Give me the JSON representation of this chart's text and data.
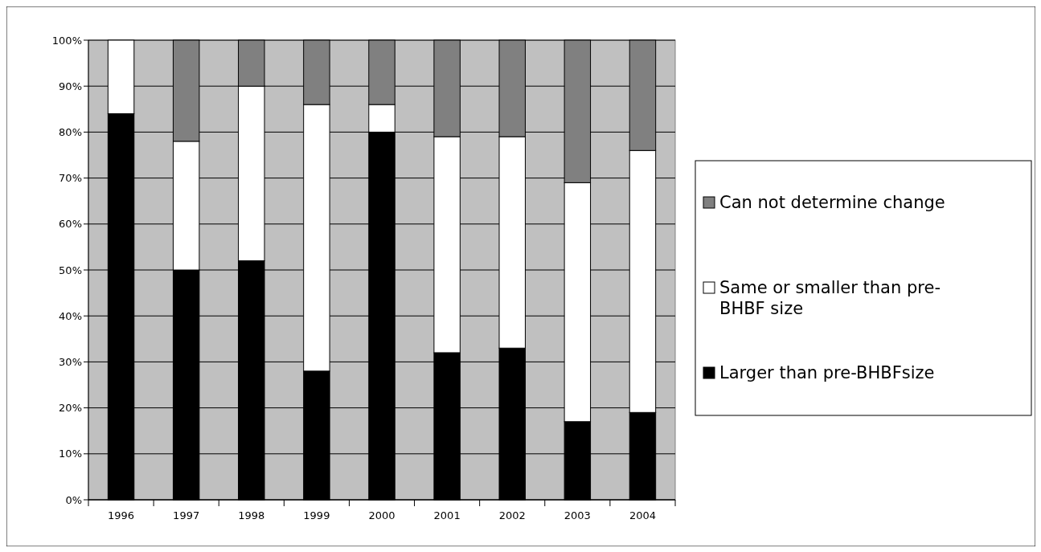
{
  "chart_data": {
    "type": "bar",
    "stacked": true,
    "categories": [
      "1996",
      "1997",
      "1998",
      "1999",
      "2000",
      "2001",
      "2002",
      "2003",
      "2004"
    ],
    "series": [
      {
        "name": "Larger than pre-BHBFsize",
        "color": "#000000",
        "values": [
          84,
          50,
          52,
          28,
          80,
          32,
          33,
          17,
          19
        ]
      },
      {
        "name": "Same or smaller than pre-BHBF size",
        "color": "#ffffff",
        "values": [
          16,
          28,
          38,
          58,
          6,
          47,
          46,
          52,
          57
        ]
      },
      {
        "name": "Can not determine change",
        "color": "#808080",
        "values": [
          0,
          22,
          10,
          14,
          14,
          21,
          21,
          31,
          24
        ]
      }
    ],
    "ylim": [
      0,
      100
    ],
    "yticks": [
      {
        "value": 0,
        "label": "0%"
      },
      {
        "value": 10,
        "label": "10%"
      },
      {
        "value": 20,
        "label": "20%"
      },
      {
        "value": 30,
        "label": "30%"
      },
      {
        "value": 40,
        "label": "40%"
      },
      {
        "value": 50,
        "label": "50%"
      },
      {
        "value": 60,
        "label": "60%"
      },
      {
        "value": 70,
        "label": "70%"
      },
      {
        "value": 80,
        "label": "80%"
      },
      {
        "value": 90,
        "label": "90%"
      },
      {
        "value": 100,
        "label": "100%"
      }
    ],
    "grid": "y",
    "legend": "right"
  }
}
